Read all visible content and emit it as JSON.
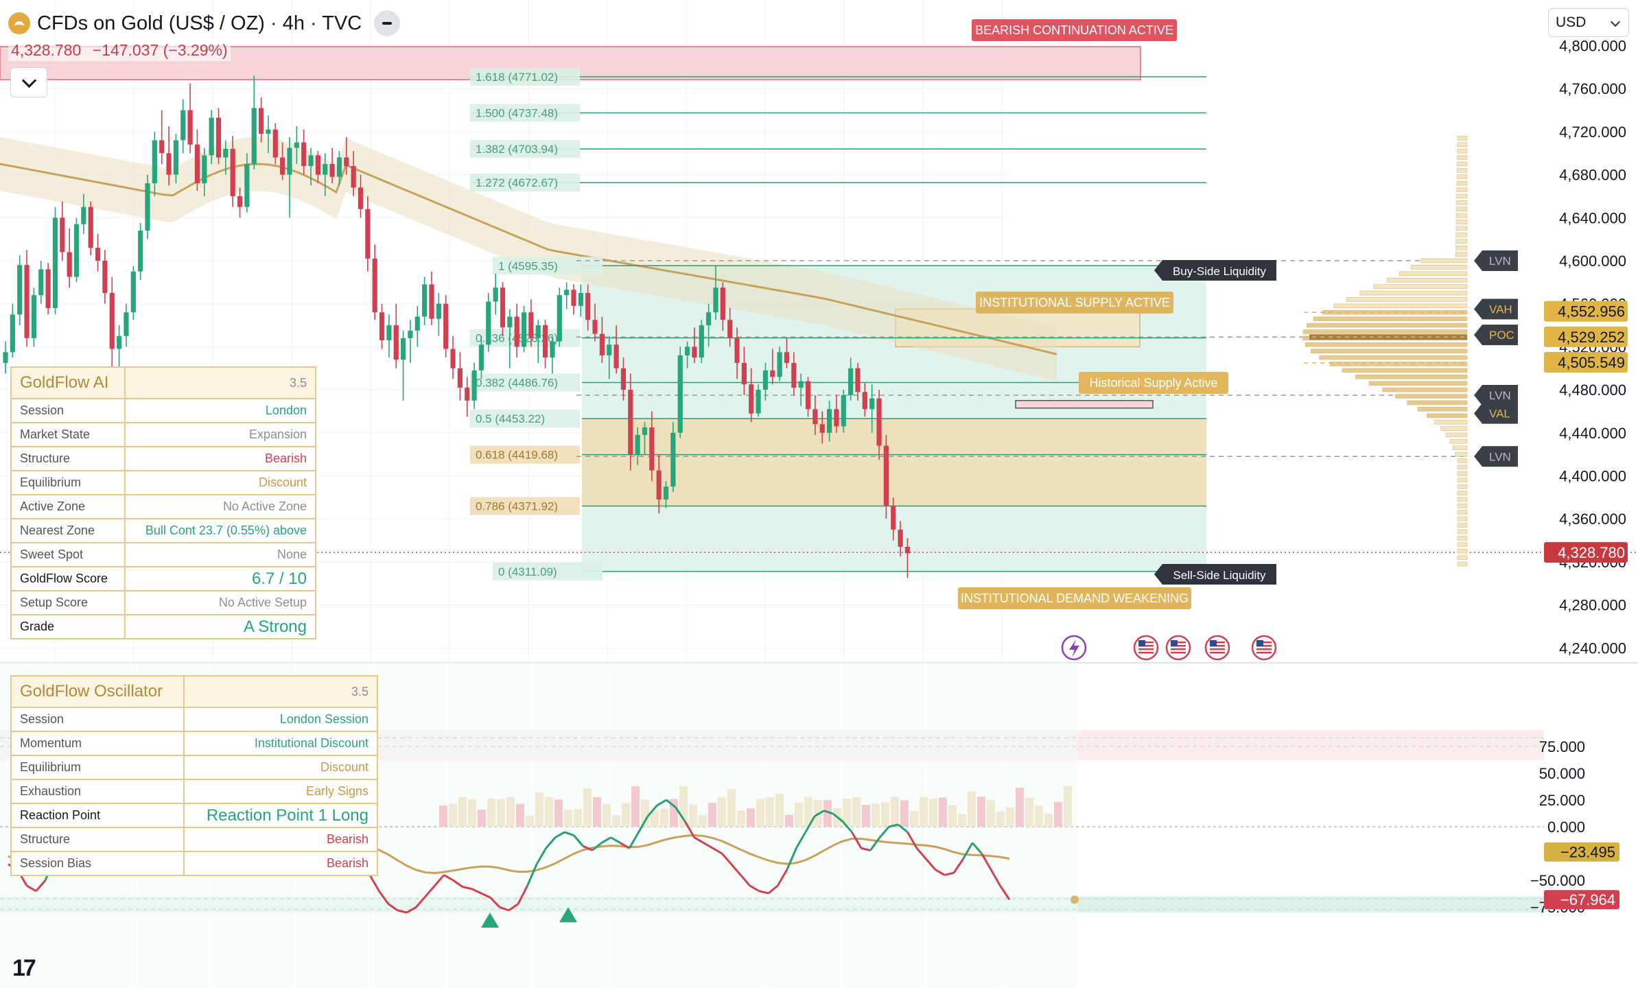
{
  "header": {
    "title": "CFDs on Gold (US$ / OZ) · 4h · TVC",
    "last_price": "4,328.780",
    "change": "−147.037 (−3.29%)",
    "currency": "USD",
    "brand": "17"
  },
  "colors": {
    "up": "#26a67a",
    "down": "#d04050",
    "gold": "#c8a15a",
    "supply_zone": "#f6d4d8",
    "fib_zone": "#dcf1ea",
    "discount_zone": "#f1dcb4"
  },
  "chart_data": [
    {
      "type": "candlestick",
      "title": "CFDs on Gold (US$ / OZ) · 4h · TVC",
      "y_range": [
        4220,
        4810
      ],
      "y_ticks": [
        "4,240.000",
        "4,280.000",
        "4,320.000",
        "4,360.000",
        "4,400.000",
        "4,440.000",
        "4,480.000",
        "4,520.000",
        "4,560.000",
        "4,600.000",
        "4,640.000",
        "4,680.000",
        "4,720.000",
        "4,760.000",
        "4,800.000"
      ],
      "x_bar_count": 150,
      "ohlc": [
        [
          4505,
          4525,
          4495,
          4515
        ],
        [
          4515,
          4560,
          4510,
          4550
        ],
        [
          4550,
          4605,
          4540,
          4596
        ],
        [
          4596,
          4610,
          4520,
          4528
        ],
        [
          4528,
          4575,
          4520,
          4568
        ],
        [
          4568,
          4600,
          4560,
          4592
        ],
        [
          4592,
          4598,
          4550,
          4556
        ],
        [
          4556,
          4650,
          4550,
          4640
        ],
        [
          4640,
          4655,
          4600,
          4608
        ],
        [
          4608,
          4630,
          4575,
          4585
        ],
        [
          4585,
          4640,
          4580,
          4634
        ],
        [
          4634,
          4662,
          4625,
          4650
        ],
        [
          4650,
          4655,
          4605,
          4612
        ],
        [
          4612,
          4625,
          4590,
          4600
        ],
        [
          4600,
          4610,
          4560,
          4570
        ],
        [
          4570,
          4585,
          4500,
          4518
        ],
        [
          4518,
          4540,
          4495,
          4530
        ],
        [
          4530,
          4560,
          4520,
          4552
        ],
        [
          4552,
          4595,
          4545,
          4590
        ],
        [
          4590,
          4635,
          4582,
          4628
        ],
        [
          4628,
          4680,
          4620,
          4672
        ],
        [
          4672,
          4720,
          4660,
          4712
        ],
        [
          4712,
          4740,
          4690,
          4700
        ],
        [
          4700,
          4725,
          4670,
          4680
        ],
        [
          4680,
          4718,
          4672,
          4712
        ],
        [
          4712,
          4750,
          4700,
          4740
        ],
        [
          4740,
          4765,
          4700,
          4708
        ],
        [
          4708,
          4722,
          4665,
          4672
        ],
        [
          4672,
          4705,
          4660,
          4698
        ],
        [
          4698,
          4740,
          4690,
          4733
        ],
        [
          4733,
          4742,
          4690,
          4696
        ],
        [
          4696,
          4712,
          4680,
          4704
        ],
        [
          4704,
          4716,
          4650,
          4660
        ],
        [
          4660,
          4668,
          4640,
          4650
        ],
        [
          4650,
          4700,
          4645,
          4690
        ],
        [
          4690,
          4772,
          4685,
          4742
        ],
        [
          4742,
          4752,
          4710,
          4718
        ],
        [
          4718,
          4735,
          4700,
          4722
        ],
        [
          4722,
          4728,
          4690,
          4696
        ],
        [
          4696,
          4710,
          4675,
          4680
        ],
        [
          4680,
          4715,
          4640,
          4705
        ],
        [
          4705,
          4725,
          4690,
          4710
        ],
        [
          4710,
          4722,
          4680,
          4688
        ],
        [
          4688,
          4705,
          4670,
          4698
        ],
        [
          4698,
          4702,
          4672,
          4680
        ],
        [
          4680,
          4700,
          4660,
          4690
        ],
        [
          4690,
          4705,
          4672,
          4678
        ],
        [
          4678,
          4702,
          4670,
          4696
        ],
        [
          4696,
          4715,
          4680,
          4688
        ],
        [
          4688,
          4702,
          4660,
          4668
        ],
        [
          4668,
          4680,
          4640,
          4648
        ],
        [
          4648,
          4660,
          4590,
          4602
        ],
        [
          4602,
          4615,
          4545,
          4552
        ],
        [
          4552,
          4560,
          4518,
          4526
        ],
        [
          4526,
          4550,
          4510,
          4540
        ],
        [
          4540,
          4560,
          4500,
          4508
        ],
        [
          4508,
          4535,
          4470,
          4528
        ],
        [
          4528,
          4545,
          4505,
          4535
        ],
        [
          4535,
          4558,
          4520,
          4548
        ],
        [
          4548,
          4585,
          4540,
          4578
        ],
        [
          4578,
          4590,
          4540,
          4546
        ],
        [
          4546,
          4570,
          4530,
          4560
        ],
        [
          4560,
          4568,
          4510,
          4518
        ],
        [
          4518,
          4530,
          4490,
          4500
        ],
        [
          4500,
          4515,
          4470,
          4482
        ],
        [
          4482,
          4492,
          4455,
          4470
        ],
        [
          4470,
          4505,
          4462,
          4498
        ],
        [
          4498,
          4530,
          4490,
          4522
        ],
        [
          4522,
          4570,
          4515,
          4562
        ],
        [
          4562,
          4588,
          4550,
          4575
        ],
        [
          4575,
          4580,
          4530,
          4538
        ],
        [
          4538,
          4555,
          4500,
          4548
        ],
        [
          4548,
          4560,
          4510,
          4520
        ],
        [
          4520,
          4558,
          4515,
          4552
        ],
        [
          4552,
          4564,
          4520,
          4528
        ],
        [
          4528,
          4545,
          4505,
          4540
        ],
        [
          4540,
          4545,
          4500,
          4510
        ],
        [
          4510,
          4530,
          4495,
          4525
        ],
        [
          4525,
          4575,
          4520,
          4568
        ],
        [
          4568,
          4580,
          4555,
          4573
        ],
        [
          4573,
          4578,
          4550,
          4558
        ],
        [
          4558,
          4578,
          4548,
          4570
        ],
        [
          4570,
          4578,
          4535,
          4545
        ],
        [
          4545,
          4560,
          4525,
          4532
        ],
        [
          4532,
          4548,
          4505,
          4512
        ],
        [
          4512,
          4530,
          4490,
          4522
        ],
        [
          4522,
          4540,
          4495,
          4500
        ],
        [
          4500,
          4510,
          4470,
          4480
        ],
        [
          4480,
          4495,
          4405,
          4420
        ],
        [
          4420,
          4445,
          4410,
          4438
        ],
        [
          4438,
          4450,
          4420,
          4445
        ],
        [
          4445,
          4460,
          4395,
          4405
        ],
        [
          4405,
          4420,
          4365,
          4378
        ],
        [
          4378,
          4395,
          4370,
          4390
        ],
        [
          4390,
          4450,
          4385,
          4440
        ],
        [
          4440,
          4520,
          4435,
          4512
        ],
        [
          4512,
          4525,
          4500,
          4520
        ],
        [
          4520,
          4538,
          4505,
          4510
        ],
        [
          4510,
          4545,
          4505,
          4540
        ],
        [
          4540,
          4560,
          4520,
          4552
        ],
        [
          4552,
          4596,
          4545,
          4575
        ],
        [
          4575,
          4580,
          4535,
          4545
        ],
        [
          4545,
          4556,
          4520,
          4528
        ],
        [
          4528,
          4538,
          4490,
          4505
        ],
        [
          4505,
          4520,
          4475,
          4485
        ],
        [
          4485,
          4500,
          4450,
          4458
        ],
        [
          4458,
          4485,
          4455,
          4480
        ],
        [
          4480,
          4505,
          4470,
          4498
        ],
        [
          4498,
          4518,
          4485,
          4492
        ],
        [
          4492,
          4520,
          4488,
          4515
        ],
        [
          4515,
          4528,
          4500,
          4505
        ],
        [
          4505,
          4515,
          4475,
          4482
        ],
        [
          4482,
          4495,
          4465,
          4488
        ],
        [
          4488,
          4492,
          4455,
          4462
        ],
        [
          4462,
          4475,
          4438,
          4448
        ],
        [
          4448,
          4460,
          4430,
          4440
        ],
        [
          4440,
          4470,
          4432,
          4462
        ],
        [
          4462,
          4475,
          4440,
          4446
        ],
        [
          4446,
          4480,
          4440,
          4475
        ],
        [
          4475,
          4510,
          4470,
          4500
        ],
        [
          4500,
          4505,
          4470,
          4478
        ],
        [
          4478,
          4486,
          4455,
          4462
        ],
        [
          4462,
          4485,
          4440,
          4472
        ],
        [
          4472,
          4480,
          4415,
          4428
        ],
        [
          4428,
          4438,
          4360,
          4372
        ],
        [
          4372,
          4380,
          4340,
          4350
        ],
        [
          4350,
          4358,
          4325,
          4334
        ],
        [
          4334,
          4342,
          4305,
          4328
        ]
      ]
    },
    {
      "type": "line",
      "title": "GoldFlow Oscillator",
      "y_range": [
        -82,
        92
      ],
      "y_ticks": [
        "75.000",
        "50.000",
        "25.000",
        "0.000",
        "−50.000",
        "−75.000"
      ],
      "last_values": [
        "−23.495",
        "−67.964"
      ],
      "series_fast": [
        -35,
        -40,
        -55,
        -60,
        -50,
        -30,
        -10,
        5,
        8,
        0,
        -20,
        -35,
        -40,
        -30,
        -15,
        0,
        10,
        15,
        5,
        -10,
        -20,
        -15,
        -5,
        5,
        15,
        25,
        20,
        10,
        0,
        -5,
        -8,
        5,
        10,
        0,
        -5,
        5,
        0,
        -15,
        -30,
        -45,
        -60,
        -72,
        -78,
        -80,
        -75,
        -65,
        -55,
        -45,
        -50,
        -56,
        -58,
        -62,
        -66,
        -75,
        -78,
        -72,
        -55,
        -35,
        -20,
        -10,
        -5,
        -8,
        -18,
        -22,
        -15,
        -10,
        -15,
        -20,
        -5,
        10,
        20,
        25,
        18,
        5,
        -10,
        -15,
        -20,
        -25,
        -35,
        -45,
        -55,
        -60,
        -62,
        -55,
        -40,
        -20,
        -5,
        10,
        15,
        12,
        5,
        -5,
        -20,
        -22,
        -10,
        0,
        2,
        -5,
        -20,
        -30,
        -40,
        -45,
        -43,
        -30,
        -15,
        -25,
        -40,
        -55,
        -68
      ]
    }
  ],
  "fibs": [
    {
      "label": "1.618",
      "price": "4771.02"
    },
    {
      "label": "1.500",
      "price": "4737.48"
    },
    {
      "label": "1.382",
      "price": "4703.94"
    },
    {
      "label": "1.272",
      "price": "4672.67"
    },
    {
      "label": "1",
      "price": "4595.35"
    },
    {
      "label": "0.236",
      "price": "4528.26"
    },
    {
      "label": "0.382",
      "price": "4486.76"
    },
    {
      "label": "0.5",
      "price": "4453.22"
    },
    {
      "label": "0.618",
      "price": "4419.68"
    },
    {
      "label": "0.786",
      "price": "4371.92"
    },
    {
      "label": "0",
      "price": "4311.09"
    }
  ],
  "labels": {
    "bearish_continuation": "BEARISH CONTINUATION  ACTIVE",
    "institutional_supply": "INSTITUTIONAL SUPPLY  ACTIVE",
    "historical_supply": "Historical Supply  Active",
    "institutional_demand": "INSTITUTIONAL DEMAND  WEAKENING",
    "buy_side_liquidity": "Buy-Side Liquidity",
    "sell_side_liquidity": "Sell-Side Liquidity"
  },
  "volume_profile": {
    "tags": [
      "LVN",
      "VAH",
      "POC",
      "LVN",
      "VAL",
      "LVN"
    ],
    "price_tags": [
      "4,552.956",
      "4,529.252",
      "4,505.549",
      "4,328.780"
    ]
  },
  "goldflow_ai": {
    "title": "GoldFlow AI",
    "version": "3.5",
    "rows": [
      {
        "label": "Session",
        "value": "London",
        "color": "green"
      },
      {
        "label": "Market State",
        "value": "Expansion",
        "color": "gray"
      },
      {
        "label": "Structure",
        "value": "Bearish",
        "color": "red"
      },
      {
        "label": "Equilibrium",
        "value": "Discount",
        "color": "gold"
      },
      {
        "label": "Active Zone",
        "value": "No Active Zone",
        "color": "gray"
      },
      {
        "label": "Nearest Zone",
        "value": "Bull Cont  23.7 (0.55%) above",
        "color": "green"
      },
      {
        "label": "Sweet Spot",
        "value": "None",
        "color": "gray"
      },
      {
        "label": "GoldFlow Score",
        "value": "6.7 / 10",
        "color": "green",
        "big": true
      },
      {
        "label": "Setup Score",
        "value": "No Active Setup",
        "color": "gray"
      },
      {
        "label": "Grade",
        "value": "A   Strong",
        "color": "green",
        "big": true
      }
    ]
  },
  "goldflow_osc": {
    "title": "GoldFlow Oscillator",
    "version": "3.5",
    "rows": [
      {
        "label": "Session",
        "value": "London Session",
        "color": "green"
      },
      {
        "label": "Momentum",
        "value": "Institutional Discount",
        "color": "green"
      },
      {
        "label": "Equilibrium",
        "value": "Discount",
        "color": "gold"
      },
      {
        "label": "Exhaustion",
        "value": "Early Signs",
        "color": "gold"
      },
      {
        "label": "Reaction Point",
        "value": "Reaction Point 1   Long",
        "color": "green",
        "big": true
      },
      {
        "label": "Structure",
        "value": "Bearish",
        "color": "red"
      },
      {
        "label": "Session Bias",
        "value": "Bearish",
        "color": "red"
      }
    ]
  }
}
